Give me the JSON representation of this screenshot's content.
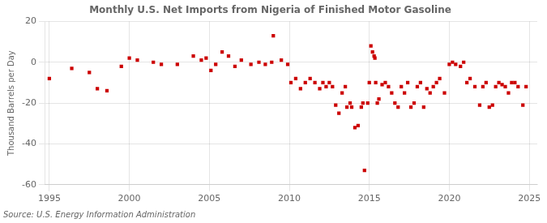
{
  "chart_data": {
    "type": "scatter",
    "title": "Monthly U.S. Net Imports from Nigeria of Finished Motor Gasoline",
    "ylabel": "Thousand Barrels per Day",
    "annotations": [
      "Source: U.S. Energy Information Administration"
    ],
    "color": "#cc0000",
    "marker": "square",
    "grid": true,
    "xlim": [
      1994.75,
      2025.5
    ],
    "xticks": [
      1995,
      2000,
      2005,
      2010,
      2015,
      2020,
      2025
    ],
    "ylim": [
      -60,
      20
    ],
    "yticks": [
      -60,
      -40,
      -20,
      0,
      20
    ],
    "x": [
      1995.0,
      1996.4,
      1997.5,
      1998.0,
      1998.6,
      1999.5,
      2000.0,
      2000.5,
      2001.5,
      2002.0,
      2003.0,
      2004.0,
      2004.5,
      2004.8,
      2005.1,
      2005.4,
      2005.8,
      2006.2,
      2006.6,
      2007.0,
      2007.6,
      2008.1,
      2008.5,
      2008.9,
      2009.0,
      2009.5,
      2009.9,
      2010.1,
      2010.4,
      2010.7,
      2011.0,
      2011.3,
      2011.6,
      2011.9,
      2012.1,
      2012.3,
      2012.5,
      2012.7,
      2012.9,
      2013.1,
      2013.3,
      2013.5,
      2013.6,
      2013.8,
      2013.9,
      2014.1,
      2014.3,
      2014.5,
      2014.6,
      2014.7,
      2014.9,
      2015.0,
      2015.1,
      2015.2,
      2015.3,
      2015.35,
      2015.4,
      2015.5,
      2015.6,
      2015.8,
      2016.0,
      2016.2,
      2016.4,
      2016.6,
      2016.8,
      2017.0,
      2017.2,
      2017.4,
      2017.6,
      2017.8,
      2018.0,
      2018.2,
      2018.4,
      2018.6,
      2018.8,
      2019.0,
      2019.2,
      2019.4,
      2019.7,
      2020.0,
      2020.2,
      2020.4,
      2020.7,
      2020.9,
      2021.1,
      2021.3,
      2021.6,
      2021.9,
      2022.1,
      2022.3,
      2022.5,
      2022.7,
      2022.9,
      2023.1,
      2023.3,
      2023.5,
      2023.7,
      2023.9,
      2024.1,
      2024.3,
      2024.6,
      2024.8
    ],
    "values": [
      -8,
      -3,
      -5,
      -13,
      -14,
      -2,
      2,
      1,
      0,
      -1,
      -1,
      3,
      1,
      2,
      -4,
      -1,
      5,
      3,
      -2,
      1,
      -1,
      0,
      -1,
      0,
      13,
      1,
      -1,
      -10,
      -8,
      -13,
      -10,
      -8,
      -10,
      -13,
      -10,
      -12,
      -10,
      -12,
      -21,
      -25,
      -15,
      -12,
      -22,
      -20,
      -22,
      -32,
      -31,
      -22,
      -20,
      -53,
      -20,
      -10,
      8,
      5,
      3,
      2,
      -10,
      -20,
      -18,
      -11,
      -10,
      -12,
      -15,
      -20,
      -22,
      -12,
      -15,
      -10,
      -22,
      -20,
      -12,
      -10,
      -22,
      -13,
      -15,
      -12,
      -10,
      -8,
      -15,
      -1,
      0,
      -1,
      -2,
      0,
      -10,
      -8,
      -12,
      -21,
      -12,
      -10,
      -22,
      -21,
      -12,
      -10,
      -11,
      -12,
      -15,
      -10,
      -10,
      -12,
      -21,
      -12
    ]
  }
}
